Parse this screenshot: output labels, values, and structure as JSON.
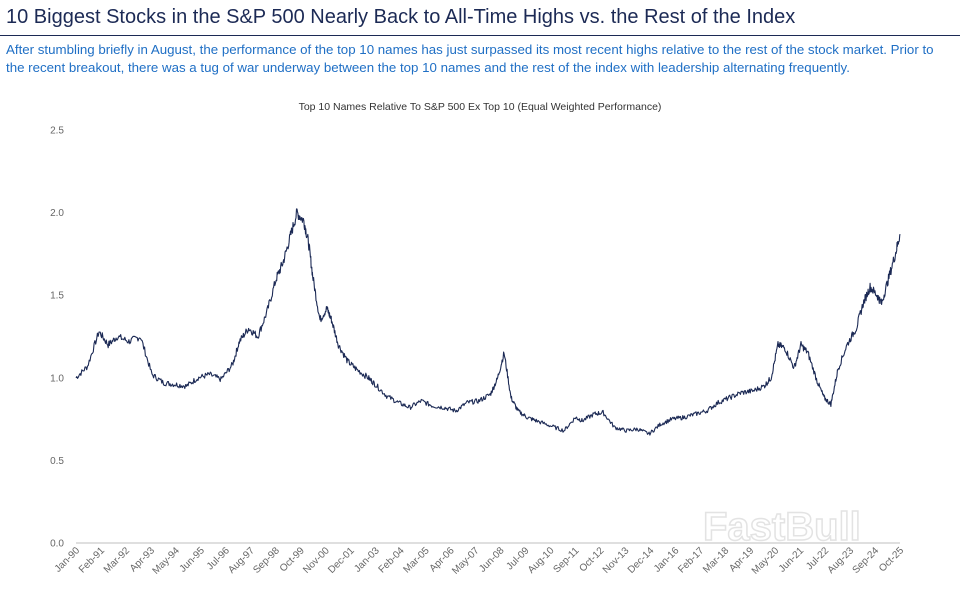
{
  "header": {
    "title": "10 Biggest Stocks in the S&P 500 Nearly Back to All-Time Highs vs. the Rest of the Index",
    "subtitle": "After stumbling briefly in August, the performance of the top 10 names has just surpassed its most recent highs relative to the rest of the stock market. Prior to the recent breakout, there was a tug of war underway between the top 10 names and the rest of the index with leadership alternating frequently."
  },
  "watermark": "FastBull",
  "colors": {
    "title": "#1c2a55",
    "subtitle": "#1f6fc5",
    "line": "#1c2a55",
    "tick": "#666666"
  },
  "chart_data": {
    "type": "line",
    "title": "Top 10 Names Relative To S&P 500 Ex Top 10 (Equal Weighted Performance)",
    "xlabel": "",
    "ylabel": "",
    "ylim": [
      0.0,
      2.5
    ],
    "yticks": [
      "0.0",
      "0.5",
      "1.0",
      "1.5",
      "2.0",
      "2.5"
    ],
    "xticks": [
      "Jan-90",
      "Feb-91",
      "Mar-92",
      "Apr-93",
      "May-94",
      "Jun-95",
      "Jul-96",
      "Aug-97",
      "Sep-98",
      "Oct-99",
      "Nov-00",
      "Dec-01",
      "Jan-03",
      "Feb-04",
      "Mar-05",
      "Apr-06",
      "May-07",
      "Jun-08",
      "Jul-09",
      "Aug-10",
      "Sep-11",
      "Oct-12",
      "Nov-13",
      "Dec-14",
      "Jan-16",
      "Feb-17",
      "Mar-18",
      "Apr-19",
      "May-20",
      "Jun-21",
      "Jul-22",
      "Aug-23",
      "Sep-24",
      "Oct-25"
    ],
    "grid": false,
    "series": [
      {
        "name": "Top 10 Names Relative To S&P 500 Ex Top 10",
        "x": [
          1990.0,
          1990.5,
          1991.0,
          1991.4,
          1991.8,
          1992.3,
          1992.8,
          1993.3,
          1993.8,
          1994.3,
          1994.8,
          1995.3,
          1995.8,
          1996.3,
          1996.8,
          1997.1,
          1997.5,
          1997.9,
          1998.3,
          1998.7,
          1999.0,
          1999.3,
          1999.6,
          1999.9,
          2000.1,
          2000.3,
          2000.6,
          2000.9,
          2001.1,
          2001.4,
          2001.8,
          2002.2,
          2002.7,
          2003.0,
          2003.5,
          2004.0,
          2004.5,
          2005.0,
          2005.5,
          2006.0,
          2006.5,
          2007.0,
          2007.5,
          2008.0,
          2008.3,
          2008.6,
          2008.9,
          2009.2,
          2009.6,
          2010.0,
          2010.6,
          2011.2,
          2011.7,
          2012.0,
          2012.5,
          2012.9,
          2013.4,
          2013.9,
          2014.4,
          2014.9,
          2015.4,
          2015.9,
          2016.4,
          2016.9,
          2017.4,
          2017.9,
          2018.4,
          2018.9,
          2019.4,
          2019.9,
          2020.2,
          2020.5,
          2020.8,
          2021.2,
          2021.5,
          2021.8,
          2022.2,
          2022.5,
          2022.8,
          2023.1,
          2023.5,
          2023.9,
          2024.2,
          2024.5,
          2024.8,
          2025.0,
          2025.3,
          2025.6,
          2025.8
        ],
        "y": [
          1.0,
          1.07,
          1.28,
          1.2,
          1.25,
          1.22,
          1.25,
          1.02,
          0.97,
          0.96,
          0.95,
          1.0,
          1.02,
          0.99,
          1.08,
          1.22,
          1.3,
          1.25,
          1.4,
          1.6,
          1.7,
          1.85,
          2.0,
          1.95,
          1.82,
          1.6,
          1.35,
          1.42,
          1.35,
          1.2,
          1.1,
          1.05,
          1.0,
          0.96,
          0.89,
          0.85,
          0.82,
          0.86,
          0.83,
          0.82,
          0.8,
          0.85,
          0.86,
          0.9,
          0.99,
          1.15,
          0.88,
          0.8,
          0.76,
          0.74,
          0.71,
          0.68,
          0.76,
          0.74,
          0.78,
          0.79,
          0.7,
          0.68,
          0.69,
          0.66,
          0.72,
          0.75,
          0.76,
          0.78,
          0.8,
          0.85,
          0.88,
          0.91,
          0.92,
          0.95,
          1.0,
          1.2,
          1.18,
          1.06,
          1.2,
          1.15,
          0.98,
          0.88,
          0.84,
          1.05,
          1.2,
          1.3,
          1.45,
          1.55,
          1.5,
          1.45,
          1.6,
          1.75,
          1.87
        ]
      }
    ]
  }
}
